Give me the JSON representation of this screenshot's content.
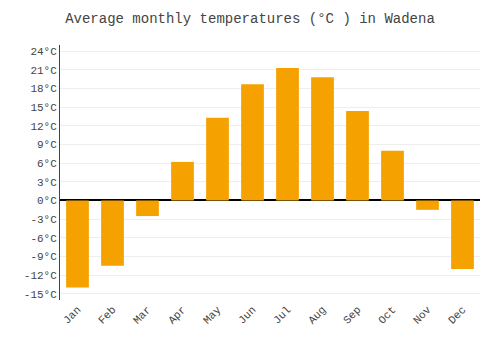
{
  "chart_data": {
    "type": "bar",
    "title": "Average monthly temperatures (°C ) in Wadena",
    "categories": [
      "Jan",
      "Feb",
      "Mar",
      "Apr",
      "May",
      "Jun",
      "Jul",
      "Aug",
      "Sep",
      "Oct",
      "Nov",
      "Dec"
    ],
    "values": [
      -14,
      -10.5,
      -2.5,
      6.2,
      13.3,
      18.7,
      21.3,
      19.8,
      14.4,
      8.0,
      -1.5,
      -11.0
    ],
    "color": "#F5A200",
    "ylim": [
      -16,
      25
    ],
    "yticks": [
      {
        "value": -15,
        "label": "-15°C"
      },
      {
        "value": -12,
        "label": "-12°C"
      },
      {
        "value": -9,
        "label": "-9°C"
      },
      {
        "value": -6,
        "label": "-6°C"
      },
      {
        "value": -3,
        "label": "-3°C"
      },
      {
        "value": 0,
        "label": "0°C"
      },
      {
        "value": 3,
        "label": "3°C"
      },
      {
        "value": 6,
        "label": "6°C"
      },
      {
        "value": 9,
        "label": "9°C"
      },
      {
        "value": 12,
        "label": "12°C"
      },
      {
        "value": 15,
        "label": "15°C"
      },
      {
        "value": 18,
        "label": "18°C"
      },
      {
        "value": 21,
        "label": "21°C"
      },
      {
        "value": 24,
        "label": "24°C"
      }
    ],
    "grid": true
  }
}
